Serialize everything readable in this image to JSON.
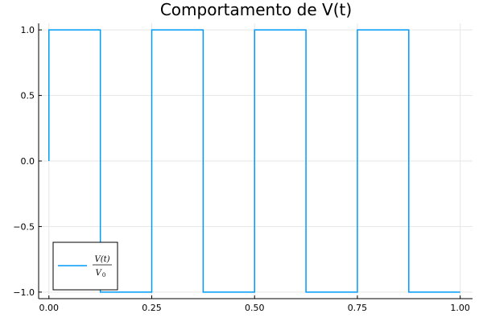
{
  "chart_data": {
    "type": "line",
    "title": "Comportamento de V(t)",
    "xlabel": "",
    "ylabel": "",
    "xlim": [
      -0.025,
      1.03
    ],
    "ylim": [
      -1.05,
      1.05
    ],
    "xticks": [
      "0.00",
      "0.25",
      "0.50",
      "0.75",
      "1.00"
    ],
    "yticks": [
      "-1.0",
      "-0.5",
      "0.0",
      "0.5",
      "1.0"
    ],
    "grid": true,
    "legend": "bottom-left",
    "series": [
      {
        "name": "V(t)/V0",
        "legend_numerator": "V(t)",
        "legend_denominator": "V",
        "legend_subscript": "0",
        "color": "#009AFA",
        "step": true,
        "x": [
          0.0,
          0.0,
          0.125,
          0.125,
          0.25,
          0.25,
          0.375,
          0.375,
          0.5,
          0.5,
          0.625,
          0.625,
          0.75,
          0.75,
          0.875,
          0.875,
          1.0
        ],
        "y": [
          0.0,
          1.0,
          1.0,
          -1.0,
          -1.0,
          1.0,
          1.0,
          -1.0,
          -1.0,
          1.0,
          1.0,
          -1.0,
          -1.0,
          1.0,
          1.0,
          -1.0,
          -1.0
        ]
      }
    ]
  }
}
